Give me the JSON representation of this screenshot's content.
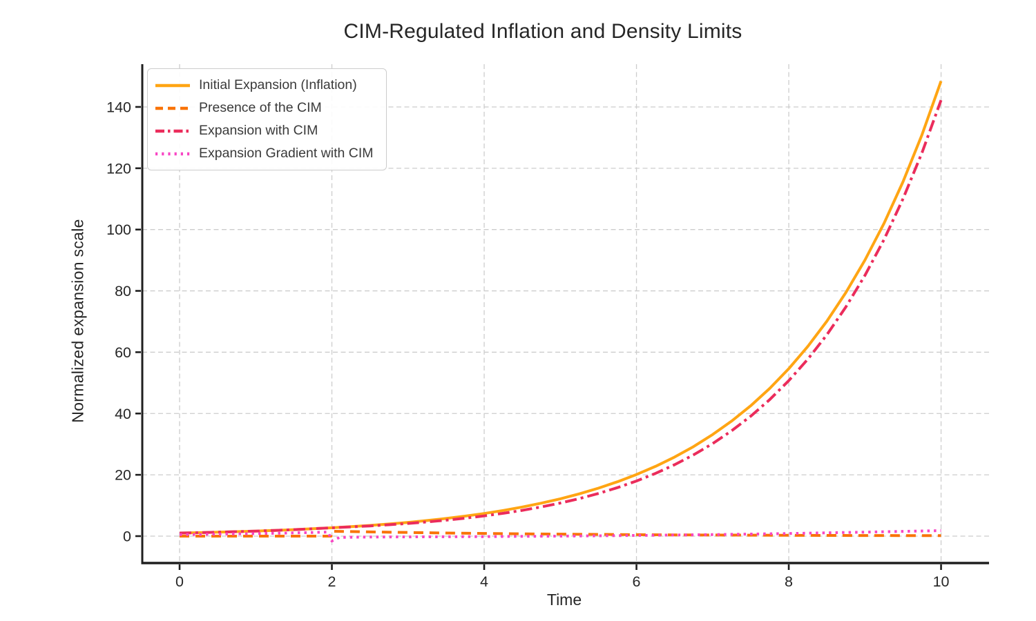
{
  "chart_data": {
    "type": "line",
    "title": "CIM-Regulated Inflation and Density Limits",
    "xlabel": "Time",
    "ylabel": "Normalized expansion scale",
    "xlim": [
      -0.49,
      10.63
    ],
    "ylim": [
      -8.78,
      153.95
    ],
    "xticks": [
      0,
      2,
      4,
      6,
      8,
      10
    ],
    "yticks": [
      0,
      20,
      40,
      60,
      80,
      100,
      120,
      140
    ],
    "grid": true,
    "grid_color": "#cccccc",
    "spine_color": "#1f1f1f",
    "tick_label_color": "#262626",
    "legend_position": "upper left",
    "series": [
      {
        "name": "Initial Expansion (Inflation)",
        "color": "#FFA513",
        "style": "solid",
        "points": [
          [
            0,
            1
          ],
          [
            0.25,
            1.13
          ],
          [
            0.5,
            1.28
          ],
          [
            0.75,
            1.46
          ],
          [
            1,
            1.65
          ],
          [
            1.25,
            1.87
          ],
          [
            1.5,
            2.12
          ],
          [
            1.75,
            2.4
          ],
          [
            2,
            2.72
          ],
          [
            2.25,
            3.08
          ],
          [
            2.5,
            3.49
          ],
          [
            2.75,
            3.95
          ],
          [
            3,
            4.48
          ],
          [
            3.25,
            5.08
          ],
          [
            3.5,
            5.75
          ],
          [
            3.75,
            6.52
          ],
          [
            4,
            7.39
          ],
          [
            4.25,
            8.37
          ],
          [
            4.5,
            9.49
          ],
          [
            4.75,
            10.75
          ],
          [
            5,
            12.18
          ],
          [
            5.25,
            13.8
          ],
          [
            5.5,
            15.64
          ],
          [
            5.75,
            17.73
          ],
          [
            6,
            20.09
          ],
          [
            6.25,
            22.76
          ],
          [
            6.5,
            25.79
          ],
          [
            6.75,
            29.22
          ],
          [
            7,
            33.12
          ],
          [
            7.25,
            37.52
          ],
          [
            7.5,
            42.52
          ],
          [
            7.75,
            48.18
          ],
          [
            8,
            54.6
          ],
          [
            8.25,
            61.87
          ],
          [
            8.5,
            70.11
          ],
          [
            8.75,
            79.44
          ],
          [
            9,
            90.02
          ],
          [
            9.25,
            102.0
          ],
          [
            9.5,
            115.58
          ],
          [
            9.75,
            130.98
          ],
          [
            10,
            148.41
          ]
        ]
      },
      {
        "name": "Presence of the CIM",
        "color": "#F97306",
        "style": "dashed",
        "points": [
          [
            0,
            0
          ],
          [
            0.5,
            0
          ],
          [
            1,
            0
          ],
          [
            1.5,
            0
          ],
          [
            1.99,
            0
          ],
          [
            2,
            1.6
          ],
          [
            2.5,
            1.38
          ],
          [
            3,
            1.18
          ],
          [
            3.5,
            1.02
          ],
          [
            4,
            0.88
          ],
          [
            4.5,
            0.75
          ],
          [
            5,
            0.65
          ],
          [
            5.5,
            0.56
          ],
          [
            6,
            0.48
          ],
          [
            6.5,
            0.41
          ],
          [
            7,
            0.36
          ],
          [
            7.5,
            0.31
          ],
          [
            8,
            0.26
          ],
          [
            8.5,
            0.23
          ],
          [
            9,
            0.2
          ],
          [
            9.5,
            0.17
          ],
          [
            10,
            0.15
          ]
        ]
      },
      {
        "name": "Expansion with CIM",
        "color": "#EB2C5B",
        "style": "dashdot",
        "points": [
          [
            0,
            1
          ],
          [
            0.25,
            1.13
          ],
          [
            0.5,
            1.28
          ],
          [
            0.75,
            1.46
          ],
          [
            1,
            1.65
          ],
          [
            1.25,
            1.87
          ],
          [
            1.5,
            2.12
          ],
          [
            1.75,
            2.4
          ],
          [
            2,
            2.72
          ],
          [
            2.25,
            3.01
          ],
          [
            2.5,
            3.34
          ],
          [
            2.75,
            3.71
          ],
          [
            3,
            4.14
          ],
          [
            3.25,
            4.64
          ],
          [
            3.5,
            5.2
          ],
          [
            3.75,
            5.85
          ],
          [
            4,
            6.59
          ],
          [
            4.25,
            7.44
          ],
          [
            4.5,
            8.41
          ],
          [
            4.75,
            9.52
          ],
          [
            5,
            10.8
          ],
          [
            5.25,
            12.25
          ],
          [
            5.5,
            13.91
          ],
          [
            5.75,
            15.82
          ],
          [
            6,
            17.99
          ],
          [
            6.25,
            20.46
          ],
          [
            6.5,
            23.29
          ],
          [
            6.75,
            26.51
          ],
          [
            7,
            30.18
          ],
          [
            7.25,
            34.36
          ],
          [
            7.5,
            39.12
          ],
          [
            7.75,
            44.53
          ],
          [
            8,
            50.7
          ],
          [
            8.25,
            57.71
          ],
          [
            8.5,
            65.68
          ],
          [
            8.75,
            74.74
          ],
          [
            9,
            85.03
          ],
          [
            9.25,
            96.72
          ],
          [
            9.5,
            110.01
          ],
          [
            9.75,
            125.09
          ],
          [
            10,
            142.21
          ]
        ]
      },
      {
        "name": "Expansion Gradient with CIM",
        "color": "#F845C4",
        "style": "dotted",
        "points": [
          [
            0,
            0.5
          ],
          [
            0.25,
            0.57
          ],
          [
            0.5,
            0.64
          ],
          [
            0.75,
            0.73
          ],
          [
            1,
            0.82
          ],
          [
            1.25,
            0.93
          ],
          [
            1.5,
            1.06
          ],
          [
            1.75,
            1.2
          ],
          [
            1.95,
            1.33
          ],
          [
            2,
            -1.6
          ],
          [
            2.1,
            -0.4
          ],
          [
            2.5,
            -0.3
          ],
          [
            3,
            -0.25
          ],
          [
            3.5,
            -0.2
          ],
          [
            4,
            -0.15
          ],
          [
            4.5,
            -0.08
          ],
          [
            5,
            0
          ],
          [
            5.5,
            0.1
          ],
          [
            6,
            0.22
          ],
          [
            6.5,
            0.35
          ],
          [
            7,
            0.5
          ],
          [
            7.5,
            0.67
          ],
          [
            8,
            0.86
          ],
          [
            8.5,
            1.07
          ],
          [
            9,
            1.3
          ],
          [
            9.5,
            1.55
          ],
          [
            10,
            1.8
          ]
        ]
      }
    ]
  }
}
